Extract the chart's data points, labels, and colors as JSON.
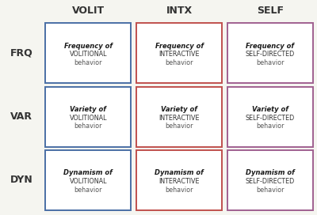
{
  "col_headers": [
    "VOLIT",
    "INTX",
    "SELF"
  ],
  "row_headers": [
    "FRQ",
    "VAR",
    "DYN"
  ],
  "col_colors": [
    "#4A6FA5",
    "#C0504D",
    "#A06090"
  ],
  "background_color": "#F5F5F0",
  "cell_bg": "#FFFFFF",
  "cells": [
    [
      {
        "bold": "Frequency",
        "line2": "VOLITIONAL",
        "line3": "behavior"
      },
      {
        "bold": "Frequency",
        "line2": "INTERACTIVE",
        "line3": "behavior"
      },
      {
        "bold": "Frequency",
        "line2": "SELF-DIRECTED",
        "line3": "behavior"
      }
    ],
    [
      {
        "bold": "Variety",
        "line2": "VOLITIONAL",
        "line3": "behavior"
      },
      {
        "bold": "Variety",
        "line2": "INTERACTIVE",
        "line3": "behavior"
      },
      {
        "bold": "Variety",
        "line2": "SELF-DIRECTED",
        "line3": "behavior"
      }
    ],
    [
      {
        "bold": "Dynamism",
        "line2": "VOLITIONAL",
        "line3": "behavior"
      },
      {
        "bold": "Dynamism",
        "line2": "INTERACTIVE",
        "line3": "behavior"
      },
      {
        "bold": "Dynamism",
        "line2": "SELF-DIRECTED",
        "line3": "behavior"
      }
    ]
  ]
}
